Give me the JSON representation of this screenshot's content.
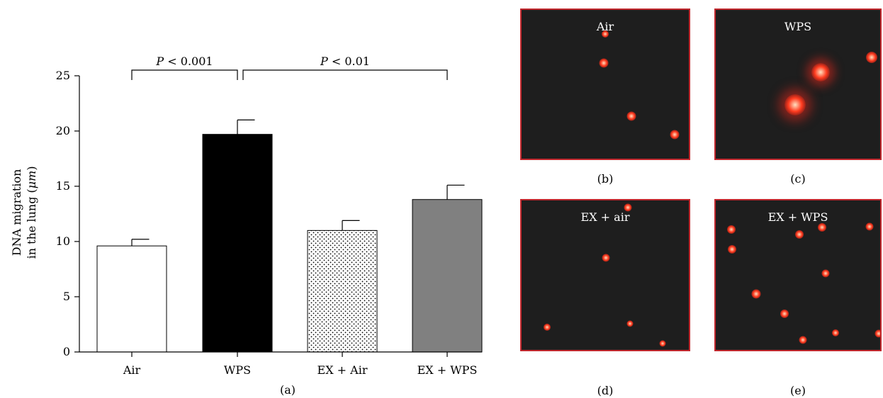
{
  "chart_data": {
    "type": "bar",
    "panel_label": "(a)",
    "categories": [
      "Air",
      "WPS",
      "EX + Air",
      "EX + WPS"
    ],
    "values": [
      9.6,
      19.7,
      11.0,
      13.8
    ],
    "errors": [
      0.6,
      1.3,
      0.9,
      1.3
    ],
    "bar_fills": [
      "white",
      "black",
      "dotted",
      "gray"
    ],
    "colors": {
      "bar_black": "#000000",
      "bar_gray": "#808080",
      "bar_white": "#ffffff"
    },
    "ylabel_line1": "DNA migration",
    "ylabel_line2": "in the lung (",
    "ylabel_mu": "μm",
    "ylabel_end": ")",
    "ylim": [
      0,
      25
    ],
    "yticks": [
      "0",
      "5",
      "10",
      "15",
      "20",
      "25"
    ],
    "grid": false,
    "annotations": [
      {
        "p_label": "P",
        "text": " < 0.001",
        "from": "Air",
        "to": "WPS"
      },
      {
        "p_label": "P",
        "text": " < 0.01",
        "from": "WPS",
        "to": "EX + WPS"
      }
    ]
  },
  "panels": [
    {
      "title": "Air",
      "label": "(b)"
    },
    {
      "title": "WPS",
      "label": "(c)"
    },
    {
      "title": "EX + air",
      "label": "(d)"
    },
    {
      "title": "EX + WPS",
      "label": "(e)"
    }
  ],
  "colors": {
    "panel_bg": "#1e1e1e",
    "panel_border": "#c0272d",
    "dot": "#ff3b1f"
  }
}
